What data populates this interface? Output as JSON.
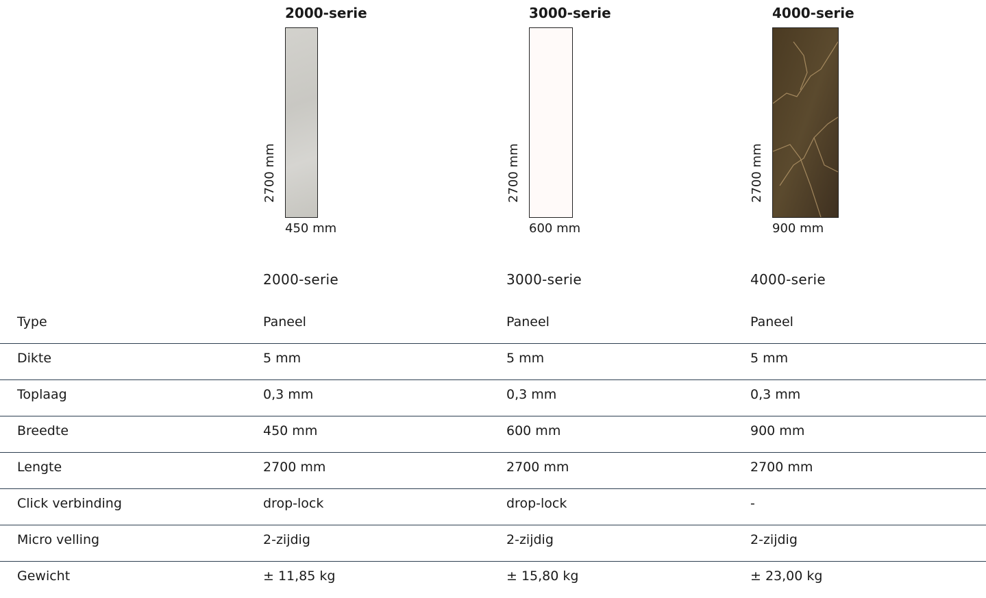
{
  "panels": [
    {
      "title": "2000-serie",
      "height": "2700 mm",
      "width": "450 mm"
    },
    {
      "title": "3000-serie",
      "height": "2700 mm",
      "width": "600 mm"
    },
    {
      "title": "4000-serie",
      "height": "2700 mm",
      "width": "900 mm"
    }
  ],
  "table": {
    "columns": [
      "2000-serie",
      "3000-serie",
      "4000-serie"
    ],
    "rows": [
      {
        "label": "Type",
        "values": [
          "Paneel",
          "Paneel",
          "Paneel"
        ]
      },
      {
        "label": "Dikte",
        "values": [
          "5 mm",
          "5 mm",
          "5 mm"
        ]
      },
      {
        "label": "Toplaag",
        "values": [
          "0,3 mm",
          "0,3 mm",
          "0,3 mm"
        ]
      },
      {
        "label": "Breedte",
        "values": [
          "450 mm",
          "600 mm",
          "900 mm"
        ]
      },
      {
        "label": "Lengte",
        "values": [
          "2700 mm",
          "2700 mm",
          "2700 mm"
        ]
      },
      {
        "label": "Click verbinding",
        "values": [
          "drop-lock",
          "drop-lock",
          "-"
        ]
      },
      {
        "label": "Micro velling",
        "values": [
          "2-zijdig",
          "2-zijdig",
          "2-zijdig"
        ]
      },
      {
        "label": "Gewicht",
        "values": [
          "± 11,85 kg",
          "± 15,80 kg",
          "± 23,00 kg"
        ]
      }
    ]
  }
}
